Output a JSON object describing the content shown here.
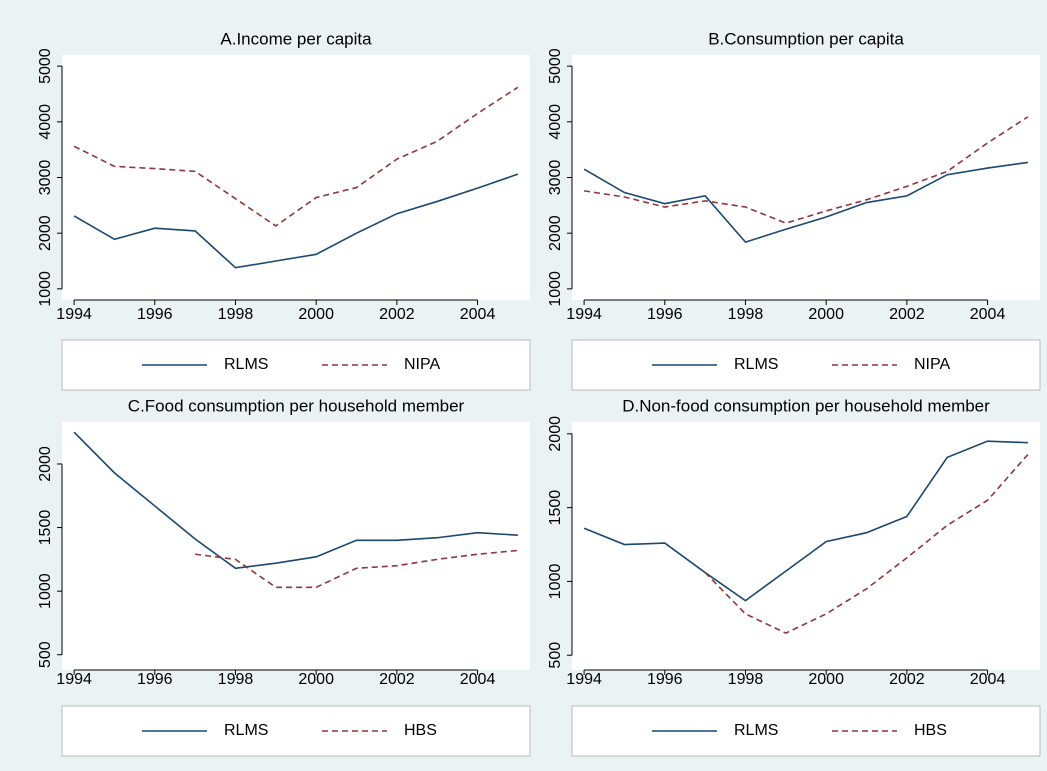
{
  "chart_data": [
    {
      "type": "line",
      "title": "A.Income per capita",
      "x": [
        1994,
        1995,
        1996,
        1997,
        1998,
        1999,
        2000,
        2001,
        2002,
        2003,
        2004,
        2005
      ],
      "series": [
        {
          "name": "RLMS",
          "color": "#1a476f",
          "dash": false,
          "values": [
            2310,
            1890,
            2090,
            2040,
            1380,
            1500,
            1620,
            2000,
            2350,
            2570,
            2810,
            3060
          ]
        },
        {
          "name": "NIPA",
          "color": "#90353b",
          "dash": true,
          "values": [
            3560,
            3200,
            3160,
            3110,
            2620,
            2130,
            2640,
            2820,
            3330,
            3650,
            4150,
            4620
          ]
        }
      ],
      "xlim": [
        1993.7,
        2005.3
      ],
      "xticks": [
        1994,
        1996,
        1998,
        2000,
        2002,
        2004
      ],
      "ylim": [
        800,
        5200
      ],
      "yticks": [
        1000,
        2000,
        3000,
        4000,
        5000
      ]
    },
    {
      "type": "line",
      "title": "B.Consumption per capita",
      "x": [
        1994,
        1995,
        1996,
        1997,
        1998,
        1999,
        2000,
        2001,
        2002,
        2003,
        2004,
        2005
      ],
      "series": [
        {
          "name": "RLMS",
          "color": "#1a476f",
          "dash": false,
          "values": [
            3150,
            2730,
            2530,
            2670,
            1840,
            2070,
            2290,
            2550,
            2670,
            3050,
            3170,
            3270
          ]
        },
        {
          "name": "NIPA",
          "color": "#90353b",
          "dash": true,
          "values": [
            2760,
            2650,
            2470,
            2580,
            2470,
            2180,
            2400,
            2600,
            2840,
            3110,
            3620,
            4090
          ]
        }
      ],
      "xlim": [
        1993.7,
        2005.3
      ],
      "xticks": [
        1994,
        1996,
        1998,
        2000,
        2002,
        2004
      ],
      "ylim": [
        800,
        5200
      ],
      "yticks": [
        1000,
        2000,
        3000,
        4000,
        5000
      ]
    },
    {
      "type": "line",
      "title": "C.Food consumption per household member",
      "x": [
        1994,
        1995,
        1996,
        1997,
        1998,
        1999,
        2000,
        2001,
        2002,
        2003,
        2004,
        2005
      ],
      "series": [
        {
          "name": "RLMS",
          "color": "#1a476f",
          "dash": false,
          "values": [
            2250,
            1930,
            1670,
            1410,
            1180,
            1220,
            1270,
            1400,
            1400,
            1420,
            1460,
            1440
          ]
        },
        {
          "name": "HBS",
          "color": "#90353b",
          "dash": true,
          "values": [
            null,
            null,
            null,
            1290,
            1250,
            1030,
            1030,
            1180,
            1200,
            1250,
            1290,
            1320
          ]
        }
      ],
      "xlim": [
        1993.7,
        2005.3
      ],
      "xticks": [
        1994,
        1996,
        1998,
        2000,
        2002,
        2004
      ],
      "ylim": [
        380,
        2330
      ],
      "yticks": [
        500,
        1000,
        1500,
        2000
      ]
    },
    {
      "type": "line",
      "title": "D.Non-food consumption per household member",
      "x": [
        1994,
        1995,
        1996,
        1997,
        1998,
        1999,
        2000,
        2001,
        2002,
        2003,
        2004,
        2005
      ],
      "series": [
        {
          "name": "RLMS",
          "color": "#1a476f",
          "dash": false,
          "values": [
            1360,
            1250,
            1260,
            1060,
            870,
            1070,
            1270,
            1330,
            1440,
            1840,
            1950,
            1940
          ]
        },
        {
          "name": "HBS",
          "color": "#90353b",
          "dash": true,
          "values": [
            null,
            null,
            null,
            1060,
            780,
            650,
            780,
            950,
            1160,
            1380,
            1550,
            1860
          ]
        }
      ],
      "xlim": [
        1993.7,
        2005.3
      ],
      "xticks": [
        1994,
        1996,
        1998,
        2000,
        2002,
        2004
      ],
      "ylim": [
        400,
        2080
      ],
      "yticks": [
        500,
        1000,
        1500,
        2000
      ]
    }
  ]
}
